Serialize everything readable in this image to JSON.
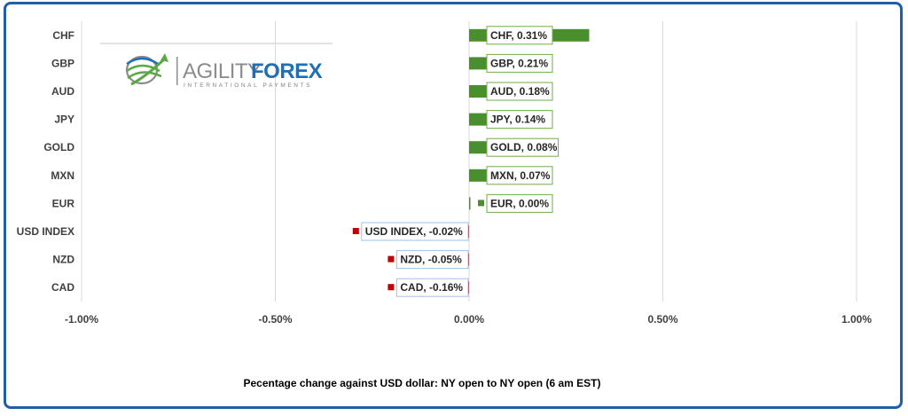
{
  "logo": {
    "word_a": "AGILITY",
    "word_b": "FOREX",
    "subtitle": "INTERNATIONAL PAYMENTS",
    "colors": {
      "green": "#5aa846",
      "blue": "#1f6fb5",
      "gray": "#8c8c8c"
    }
  },
  "colors": {
    "positive": "#4a8f2d",
    "negative": "#c00000",
    "positive_border": "#70ad47",
    "negative_border": "#9dc3e6",
    "frame": "#1f5fa8"
  },
  "chart_data": {
    "type": "bar",
    "orientation": "horizontal",
    "categories": [
      "CHF",
      "GBP",
      "AUD",
      "JPY",
      "GOLD",
      "MXN",
      "EUR",
      "USD INDEX",
      "NZD",
      "CAD"
    ],
    "values": [
      0.31,
      0.21,
      0.18,
      0.14,
      0.08,
      0.07,
      0.0,
      -0.02,
      -0.05,
      -0.16
    ],
    "data_labels": [
      "CHF, 0.31%",
      "GBP, 0.21%",
      "AUD, 0.18%",
      "JPY, 0.14%",
      "GOLD, 0.08%",
      "MXN, 0.07%",
      "EUR, 0.00%",
      "USD INDEX, -0.02%",
      "NZD, -0.05%",
      "CAD, -0.16%"
    ],
    "xlim": [
      -1.0,
      1.0
    ],
    "xticks": [
      -1.0,
      -0.5,
      0.0,
      0.5,
      1.0
    ],
    "xtick_labels": [
      "-1.00%",
      "-0.50%",
      "0.00%",
      "0.50%",
      "1.00%"
    ],
    "grid": true,
    "legend": "none",
    "caption": "Pecentage change against USD dollar:  NY open to NY open  (6 am EST)"
  }
}
